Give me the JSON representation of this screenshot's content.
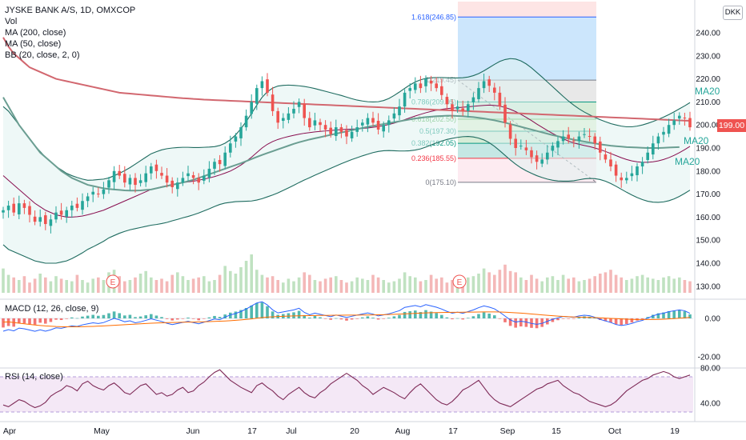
{
  "header": {
    "title": "JYSKE BANK A/S, 1D, OMXCOP",
    "indicators": [
      "Vol",
      "MA (200, close)",
      "MA (50, close)",
      "BB (20, close, 2, 0)"
    ],
    "currency_button": "DKK",
    "last_price": "199.00"
  },
  "macd_title": "MACD (12, 26, close, 9)",
  "rsi_title": "RSI (14, close)",
  "chart_data": [
    {
      "type": "candlestick",
      "ylim": [
        125,
        250
      ],
      "y_ticks": [
        "240.00",
        "230.00",
        "220.00",
        "210.00",
        "200.00",
        "190.00",
        "180.00",
        "170.00",
        "160.00",
        "150.00",
        "140.00",
        "130.00"
      ],
      "x_ticks": [
        "Apr",
        "May",
        "Jun",
        "17",
        "Jul",
        "20",
        "Aug",
        "17",
        "Sep",
        "15",
        "Oct",
        "19"
      ],
      "series_labels": [
        "MA20",
        "MA20",
        "MA20"
      ],
      "earnings_markers": [
        "E",
        "E"
      ],
      "close_series": [
        163,
        165,
        162,
        166,
        164,
        161,
        158,
        160,
        157,
        159,
        162,
        161,
        163,
        165,
        164,
        167,
        169,
        171,
        170,
        172,
        176,
        180,
        178,
        175,
        177,
        174,
        176,
        179,
        182,
        180,
        178,
        175,
        173,
        175,
        177,
        179,
        177,
        175,
        178,
        181,
        184,
        183,
        188,
        192,
        195,
        199,
        204,
        210,
        216,
        219,
        214,
        206,
        201,
        203,
        205,
        207,
        210,
        203,
        199,
        202,
        200,
        198,
        196,
        199,
        197,
        195,
        197,
        199,
        201,
        203,
        201,
        198,
        200,
        202,
        205,
        208,
        214,
        216,
        218,
        216,
        220,
        218,
        216,
        213,
        209,
        206,
        208,
        206,
        209,
        212,
        216,
        219,
        217,
        214,
        208,
        201,
        194,
        190,
        191,
        189,
        186,
        184,
        185,
        188,
        191,
        193,
        195,
        194,
        193,
        195,
        196,
        195,
        192,
        188,
        185,
        182,
        178,
        176,
        177,
        179,
        182,
        184,
        188,
        192,
        195,
        197,
        200,
        202,
        204,
        203,
        199
      ],
      "volume": [
        19,
        14,
        12,
        10,
        13,
        8,
        11,
        15,
        12,
        9,
        13,
        11,
        10,
        9,
        14,
        10,
        8,
        11,
        12,
        10,
        16,
        18,
        13,
        9,
        10,
        12,
        15,
        17,
        12,
        10,
        11,
        9,
        14,
        16,
        13,
        10,
        11,
        12,
        13,
        9,
        10,
        14,
        21,
        17,
        15,
        20,
        25,
        30,
        18,
        14,
        12,
        13,
        10,
        8,
        11,
        9,
        12,
        16,
        14,
        10,
        9,
        11,
        12,
        13,
        10,
        8,
        9,
        12,
        11,
        10,
        14,
        12,
        10,
        8,
        9,
        11,
        16,
        13,
        12,
        9,
        10,
        14,
        11,
        12,
        8,
        10,
        9,
        11,
        12,
        13,
        15,
        19,
        16,
        14,
        18,
        22,
        17,
        16,
        12,
        10,
        14,
        11,
        9,
        12,
        13,
        10,
        14,
        11,
        12,
        9,
        10,
        11,
        13,
        15,
        16,
        18,
        14,
        12,
        10,
        11,
        13,
        14,
        12,
        11,
        10,
        12,
        13,
        11,
        12,
        10,
        9
      ],
      "ma200": [
        238,
        234,
        231,
        229,
        227,
        225,
        224,
        223,
        222,
        221,
        220,
        219.5,
        219,
        218.5,
        218,
        217.5,
        217,
        216.5,
        216,
        215.5,
        215,
        214.5,
        214,
        213.8,
        213.6,
        213.4,
        213.2,
        213,
        212.8,
        212.6,
        212.4,
        212.2,
        212,
        211.8,
        211.6,
        211.5,
        211.3,
        211.2,
        211,
        210.9,
        210.8,
        210.7,
        210.6,
        210.5,
        210.4,
        210.3,
        210.2,
        210.1,
        210,
        209.9,
        209.8,
        209.7,
        209.6,
        209.5,
        209.4,
        209.3,
        209.2,
        209.1,
        209,
        208.9,
        208.8,
        208.7,
        208.6,
        208.5,
        208.4,
        208.3,
        208.2,
        208.1,
        208,
        207.9,
        207.8,
        207.7,
        207.6,
        207.5,
        207.4,
        207.3,
        207.2,
        207.1,
        207,
        206.9,
        206.8,
        206.7,
        206.6,
        206.5,
        206.4,
        206.3,
        206.2,
        206.1,
        206,
        205.9,
        205.8,
        205.7,
        205.6,
        205.5,
        205.4,
        205.3,
        205.2,
        205.1,
        205,
        204.9,
        204.8,
        204.7,
        204.6,
        204.5,
        204.4,
        204.3,
        204.2,
        204.1,
        204,
        203.9,
        203.8,
        203.7,
        203.6,
        203.5,
        203.4,
        203.3,
        203.2,
        203.1,
        203,
        202.9,
        202.8,
        202.7,
        202.6,
        202.5,
        202.4,
        202.3,
        202.2,
        202.1,
        202,
        201.9,
        201.8
      ],
      "ma50": [
        212,
        208,
        204,
        200,
        197,
        194,
        191,
        188,
        186,
        184,
        182,
        180,
        178.5,
        177,
        176,
        175,
        174,
        173.5,
        173,
        172.5,
        172.2,
        172,
        171.8,
        171.6,
        171.5,
        171.5,
        171.6,
        171.8,
        172,
        172.5,
        173,
        173.5,
        174,
        174.5,
        175,
        175.6,
        176.2,
        177,
        177.8,
        178.6,
        179.4,
        180.2,
        181,
        181.8,
        182.6,
        183.4,
        184.3,
        185.2,
        186.1,
        187,
        187.8,
        188.6,
        189.4,
        190.2,
        191,
        191.8,
        192.5,
        193.1,
        193.7,
        194.2,
        194.7,
        195.2,
        195.7,
        196.2,
        196.7,
        197.2,
        197.7,
        198.2,
        198.7,
        199.2,
        199.6,
        200,
        200.4,
        200.8,
        201.2,
        201.6,
        202,
        202.4,
        202.8,
        203.1,
        203.4,
        203.6,
        203.8,
        203.9,
        204,
        204,
        203.9,
        203.8,
        203.6,
        203.4,
        203.1,
        202.8,
        202.4,
        202,
        201.5,
        201,
        200.4,
        199.8,
        199.2,
        198.6,
        198,
        197.4,
        196.8,
        196.2,
        195.6,
        195.1,
        194.6,
        194.1,
        193.6,
        193.2,
        192.8,
        192.4,
        192,
        191.6,
        191.3,
        191,
        190.8,
        190.6,
        190.4,
        190.3,
        190.2,
        190.1,
        190,
        190,
        190,
        190.1,
        190.2,
        190.3,
        190.4
      ],
      "bb_mid": [
        178,
        176,
        174,
        172,
        170,
        168,
        166,
        164.5,
        163,
        162,
        161,
        160.5,
        160,
        160,
        160.2,
        160.5,
        161,
        161.6,
        162.3,
        163,
        164,
        165,
        166,
        167,
        168,
        169,
        170,
        171,
        172,
        172.6,
        173.2,
        173.7,
        174.2,
        174.6,
        175,
        175.3,
        175.6,
        176,
        176.5,
        177,
        177.6,
        178.3,
        179.1,
        180,
        181.2,
        182.6,
        184.2,
        186,
        188,
        190,
        191.6,
        192.8,
        193.7,
        194.4,
        195,
        195.5,
        196,
        196.4,
        196.7,
        197,
        197.2,
        197.4,
        197.6,
        197.8,
        198,
        198.1,
        198.2,
        198.3,
        198.5,
        198.7,
        199,
        199.3,
        199.7,
        200.2,
        200.8,
        201.5,
        202.3,
        203.1,
        203.9,
        204.6,
        205.3,
        205.9,
        206.4,
        206.8,
        207.1,
        207.3,
        207.5,
        207.7,
        207.9,
        208.1,
        208.3,
        208.5,
        208.6,
        208.5,
        208.2,
        207.6,
        206.8,
        205.8,
        204.6,
        203.3,
        201.9,
        200.4,
        199,
        197.6,
        196.3,
        195.1,
        194,
        193,
        192.2,
        191.6,
        191.1,
        190.6,
        190,
        189.3,
        188.5,
        187.6,
        186.7,
        185.8,
        185,
        184.4,
        184,
        183.8,
        183.8,
        184,
        184.4,
        185,
        185.8,
        186.8,
        188,
        189.3,
        190.7
      ],
      "bb_width": [
        30,
        30,
        29,
        28,
        27,
        26,
        25,
        24,
        23,
        22,
        21,
        20,
        19,
        18,
        17,
        16,
        15,
        14.5,
        14,
        13.5,
        13,
        13,
        13,
        13.2,
        13.5,
        14,
        14.5,
        15,
        15.5,
        15.8,
        16,
        16,
        15.8,
        15.6,
        15.3,
        15,
        14.6,
        14.2,
        13.8,
        13.4,
        13,
        12.8,
        13,
        13.6,
        14.5,
        15.8,
        17.3,
        19,
        20.6,
        22,
        22.8,
        23.2,
        23.2,
        22.8,
        22.3,
        21.7,
        21,
        20.3,
        19.6,
        18.8,
        18,
        17.2,
        16.4,
        15.6,
        14.8,
        14,
        13.2,
        12.5,
        11.9,
        11.4,
        11,
        10.8,
        10.9,
        11.3,
        12,
        12.8,
        13.6,
        14.3,
        14.8,
        15,
        14.9,
        14.6,
        14.2,
        13.8,
        13.4,
        13.1,
        12.9,
        12.8,
        12.9,
        13.3,
        14,
        15,
        16.3,
        17.8,
        19.4,
        20.8,
        22,
        22.8,
        23.2,
        23.2,
        22.9,
        22.4,
        21.8,
        21.1,
        20.3,
        19.4,
        18.4,
        17.4,
        16.4,
        15.4,
        14.5,
        13.8,
        13.3,
        13,
        12.9,
        13,
        13.3,
        13.7,
        14.2,
        14.8,
        15.5,
        16.2,
        16.9,
        17.5,
        18,
        18.4,
        18.7,
        18.9,
        19,
        19,
        19
      ],
      "fib_levels": [
        {
          "ratio": "1.618(246.85)",
          "value": 246.85,
          "color": "#2962ff"
        },
        {
          "ratio": "1(219.45)",
          "value": 219.45,
          "color": "#787b86"
        },
        {
          "ratio": "0.786(209.95)",
          "value": 209.95,
          "color": "#089981"
        },
        {
          "ratio": "0.618(202.50)",
          "value": 202.5,
          "color": "#4caf50"
        },
        {
          "ratio": "0.5(197.30)",
          "value": 197.3,
          "color": "#089981"
        },
        {
          "ratio": "0.382(192.05)",
          "value": 192.05,
          "color": "#089981"
        },
        {
          "ratio": "0.236(185.55)",
          "value": 185.55,
          "color": "#f23645"
        },
        {
          "ratio": "0(175.10)",
          "value": 175.1,
          "color": "#787b86"
        }
      ]
    },
    {
      "type": "bar",
      "name": "MACD",
      "y_ticks": [
        "0.00",
        "-20.00"
      ],
      "ylim": [
        -25,
        8
      ]
    },
    {
      "type": "line",
      "name": "RSI",
      "y_ticks": [
        "80.00",
        "40.00"
      ],
      "ylim": [
        30,
        82
      ],
      "band": [
        30,
        70
      ],
      "values": [
        38,
        36,
        40,
        44,
        42,
        38,
        35,
        37,
        41,
        48,
        52,
        55,
        60,
        58,
        54,
        62,
        65,
        60,
        57,
        55,
        60,
        63,
        58,
        52,
        50,
        55,
        60,
        62,
        56,
        50,
        52,
        48,
        50,
        55,
        58,
        52,
        54,
        60,
        64,
        70,
        75,
        78,
        72,
        66,
        62,
        58,
        55,
        52,
        60,
        63,
        58,
        54,
        48,
        44,
        50,
        54,
        58,
        52,
        48,
        46,
        52,
        56,
        62,
        66,
        70,
        74,
        70,
        66,
        60,
        56,
        50,
        54,
        58,
        55,
        52,
        48,
        45,
        52,
        58,
        62,
        56,
        50,
        44,
        40,
        38,
        42,
        48,
        55,
        58,
        62,
        66,
        58,
        50,
        44,
        40,
        38,
        36,
        40,
        44,
        48,
        52,
        56,
        58,
        62,
        64,
        66,
        60,
        56,
        52,
        50,
        46,
        42,
        40,
        38,
        36,
        38,
        42,
        48,
        54,
        58,
        62,
        66,
        68,
        72,
        74,
        76,
        74,
        70,
        68,
        70,
        72
      ]
    }
  ]
}
